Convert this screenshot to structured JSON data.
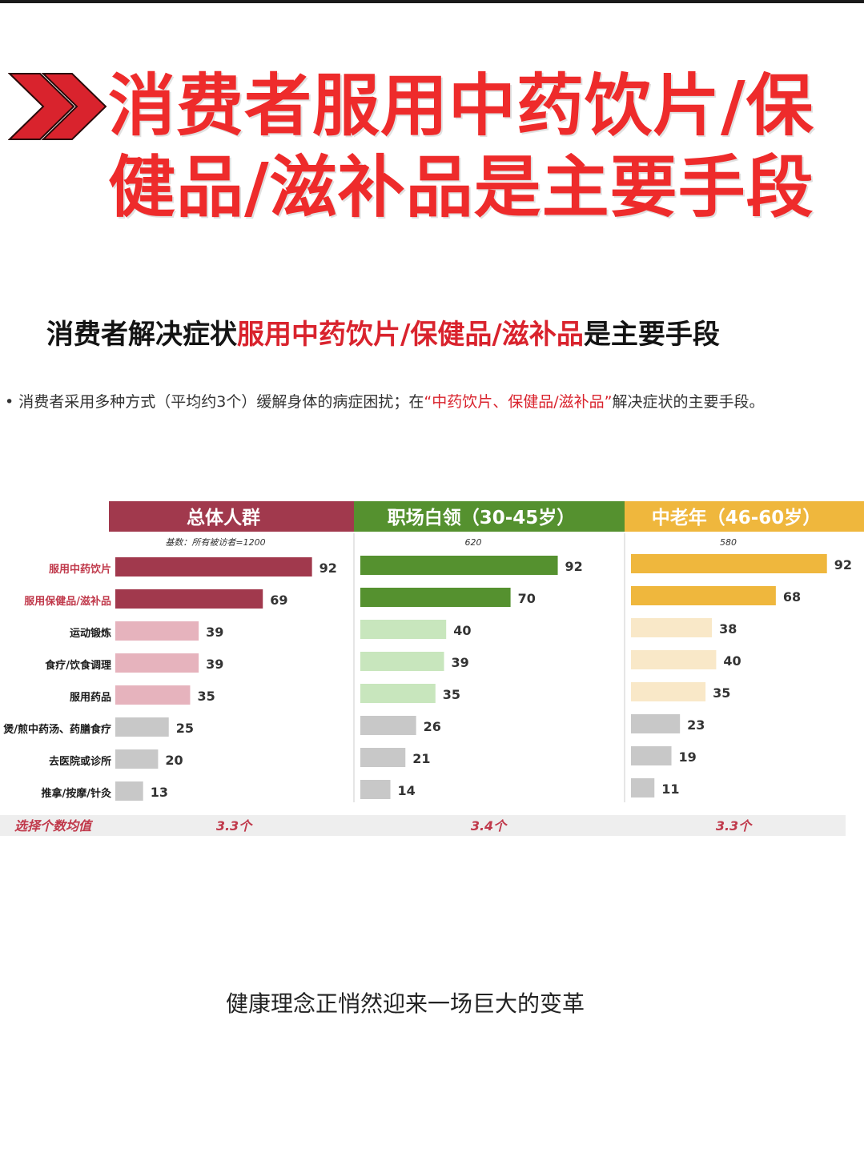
{
  "headline": {
    "line1": "消费者服用中药饮片/保",
    "line2": "健品/滋补品是主要手段"
  },
  "subtitle": {
    "part1": "消费者解决症状",
    "part2": "服用中药饮片/保健品/滋补品",
    "part3": "是主要手段"
  },
  "bullet": {
    "mark": "•",
    "part1": "消费者采用多种方式（平均约3个）缓解身体的病症困扰；在",
    "part2": "“中药饮片、保健品/滋补品”",
    "part3": "解决症状的主要手段。"
  },
  "colors": {
    "headline_red": "#ee2b2b",
    "overall_header": "#a1394d",
    "white_collar_header": "#55912f",
    "senior_header": "#efb73d",
    "grey_bar": "#c8c8c8",
    "category_red": "#c0394b"
  },
  "chart_data": {
    "type": "bar",
    "orientation": "horizontal",
    "categories": [
      "服用中药饮片",
      "服用保健品/滋补品",
      "运动锻炼",
      "食疗/饮食调理",
      "服用药品",
      "煲/煎中药汤、药膳食疗",
      "去医院或诊所",
      "推拿/按摩/针灸"
    ],
    "highlighted_categories": [
      "服用中药饮片",
      "服用保健品/滋补品"
    ],
    "series": [
      {
        "name": "总体人群",
        "base": "基数：所有被访者=1200",
        "values": [
          92,
          69,
          39,
          39,
          35,
          25,
          20,
          13
        ],
        "average": "3.3个",
        "colors": [
          "#a1394d",
          "#a1394d",
          "#e6b3bd",
          "#e6b3bd",
          "#e6b3bd",
          "#c8c8c8",
          "#c8c8c8",
          "#c8c8c8"
        ]
      },
      {
        "name": "职场白领（30-45岁）",
        "base": "620",
        "values": [
          92,
          70,
          40,
          39,
          35,
          26,
          21,
          14
        ],
        "average": "3.4个",
        "colors": [
          "#55912f",
          "#55912f",
          "#c8e6bd",
          "#c8e6bd",
          "#c8e6bd",
          "#c8c8c8",
          "#c8c8c8",
          "#c8c8c8"
        ]
      },
      {
        "name": "中老年（46-60岁）",
        "base": "580",
        "values": [
          92,
          68,
          38,
          40,
          35,
          23,
          19,
          11
        ],
        "average": "3.3个",
        "colors": [
          "#efb73d",
          "#efb73d",
          "#f9e8c8",
          "#f9e8c8",
          "#f9e8c8",
          "#c8c8c8",
          "#c8c8c8",
          "#c8c8c8"
        ]
      }
    ],
    "average_label": "选择个数均值",
    "xlim": [
      0,
      100
    ],
    "grid": false,
    "legend": "none"
  },
  "caption": "健康理念正悄然迎来一场巨大的变革"
}
